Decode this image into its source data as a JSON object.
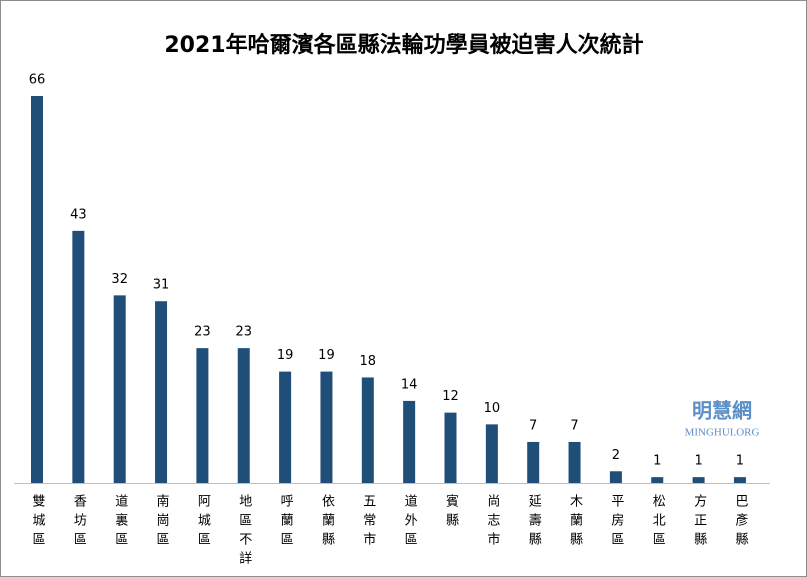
{
  "chart_data": {
    "type": "bar",
    "title": "2021年哈爾濱各區縣法輪功學員被迫害人次統計",
    "categories": [
      "雙城區",
      "香坊區",
      "道裏區",
      "南崗區",
      "阿城區",
      "地區不詳",
      "呼蘭區",
      "依蘭縣",
      "五常市",
      "道外區",
      "賓縣",
      "尚志市",
      "延壽縣",
      "木蘭縣",
      "平房區",
      "松北區",
      "方正縣",
      "巴彥縣"
    ],
    "values": [
      66,
      43,
      32,
      31,
      23,
      23,
      19,
      19,
      18,
      14,
      12,
      10,
      7,
      7,
      2,
      1,
      1,
      1
    ],
    "color": "#1f4e79",
    "watermark": {
      "name": "明慧網",
      "url": "MINGHUI.ORG"
    }
  }
}
